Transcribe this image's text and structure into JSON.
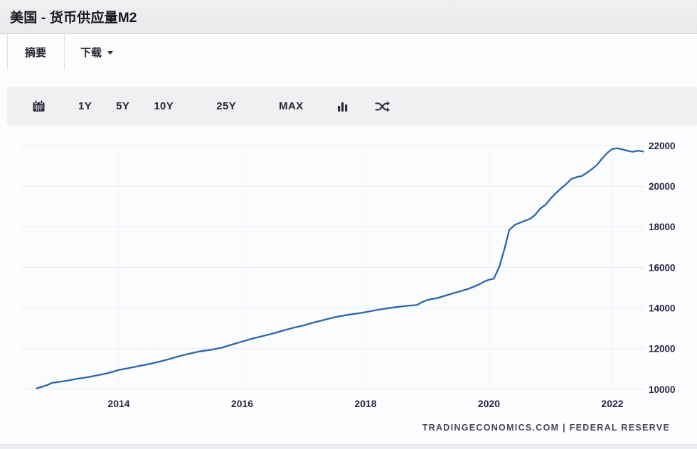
{
  "header": {
    "title": "美国 - 货币供应量M2"
  },
  "tabs": {
    "summary": "摘要",
    "download": "下载"
  },
  "toolbar": {
    "ranges": [
      "1Y",
      "5Y",
      "10Y",
      "25Y",
      "MAX"
    ],
    "icons": [
      "calendar-icon",
      "bar-chart-icon",
      "shuffle-icon"
    ]
  },
  "colors": {
    "line": "#2b66a7",
    "axis_text": "#2b2547",
    "toolbar_bg": "#eff0f2",
    "header_bg": "#ededee"
  },
  "chart_data": {
    "type": "line",
    "title": "美国 - 货币供应量M2",
    "xlabel": "",
    "ylabel": "",
    "x_ticks": [
      2014,
      2016,
      2018,
      2020,
      2022
    ],
    "y_ticks": [
      10000,
      12000,
      14000,
      16000,
      18000,
      20000,
      22000
    ],
    "xlim": [
      2012.6,
      2022.6
    ],
    "ylim": [
      9400,
      22800
    ],
    "grid": true,
    "legend": "none",
    "source": "TRADINGECONOMICS.COM  |  FEDERAL RESERVE",
    "series": [
      {
        "name": "货币供应量M2",
        "points": [
          [
            2012.67,
            10050
          ],
          [
            2012.75,
            10120
          ],
          [
            2012.83,
            10200
          ],
          [
            2012.92,
            10320
          ],
          [
            2013.0,
            10350
          ],
          [
            2013.17,
            10430
          ],
          [
            2013.33,
            10520
          ],
          [
            2013.5,
            10600
          ],
          [
            2013.67,
            10700
          ],
          [
            2013.83,
            10800
          ],
          [
            2014.0,
            10950
          ],
          [
            2014.17,
            11050
          ],
          [
            2014.33,
            11150
          ],
          [
            2014.5,
            11250
          ],
          [
            2014.67,
            11370
          ],
          [
            2014.83,
            11500
          ],
          [
            2015.0,
            11650
          ],
          [
            2015.17,
            11770
          ],
          [
            2015.33,
            11880
          ],
          [
            2015.5,
            11950
          ],
          [
            2015.67,
            12050
          ],
          [
            2015.83,
            12200
          ],
          [
            2016.0,
            12350
          ],
          [
            2016.17,
            12500
          ],
          [
            2016.33,
            12620
          ],
          [
            2016.5,
            12750
          ],
          [
            2016.67,
            12900
          ],
          [
            2016.83,
            13030
          ],
          [
            2017.0,
            13150
          ],
          [
            2017.17,
            13300
          ],
          [
            2017.33,
            13420
          ],
          [
            2017.5,
            13550
          ],
          [
            2017.67,
            13650
          ],
          [
            2017.83,
            13720
          ],
          [
            2018.0,
            13800
          ],
          [
            2018.17,
            13900
          ],
          [
            2018.33,
            13980
          ],
          [
            2018.5,
            14050
          ],
          [
            2018.67,
            14110
          ],
          [
            2018.83,
            14150
          ],
          [
            2018.92,
            14300
          ],
          [
            2019.0,
            14400
          ],
          [
            2019.17,
            14500
          ],
          [
            2019.33,
            14650
          ],
          [
            2019.5,
            14800
          ],
          [
            2019.67,
            14950
          ],
          [
            2019.83,
            15150
          ],
          [
            2019.92,
            15300
          ],
          [
            2020.0,
            15400
          ],
          [
            2020.08,
            15450
          ],
          [
            2020.17,
            16050
          ],
          [
            2020.25,
            16900
          ],
          [
            2020.33,
            17850
          ],
          [
            2020.42,
            18100
          ],
          [
            2020.5,
            18200
          ],
          [
            2020.58,
            18300
          ],
          [
            2020.67,
            18400
          ],
          [
            2020.75,
            18600
          ],
          [
            2020.83,
            18900
          ],
          [
            2020.92,
            19100
          ],
          [
            2021.0,
            19400
          ],
          [
            2021.08,
            19650
          ],
          [
            2021.17,
            19900
          ],
          [
            2021.25,
            20100
          ],
          [
            2021.33,
            20350
          ],
          [
            2021.42,
            20450
          ],
          [
            2021.5,
            20500
          ],
          [
            2021.58,
            20650
          ],
          [
            2021.67,
            20850
          ],
          [
            2021.75,
            21050
          ],
          [
            2021.83,
            21350
          ],
          [
            2021.92,
            21650
          ],
          [
            2022.0,
            21840
          ],
          [
            2022.08,
            21870
          ],
          [
            2022.17,
            21810
          ],
          [
            2022.25,
            21740
          ],
          [
            2022.33,
            21700
          ],
          [
            2022.42,
            21750
          ],
          [
            2022.5,
            21710
          ]
        ]
      }
    ]
  }
}
